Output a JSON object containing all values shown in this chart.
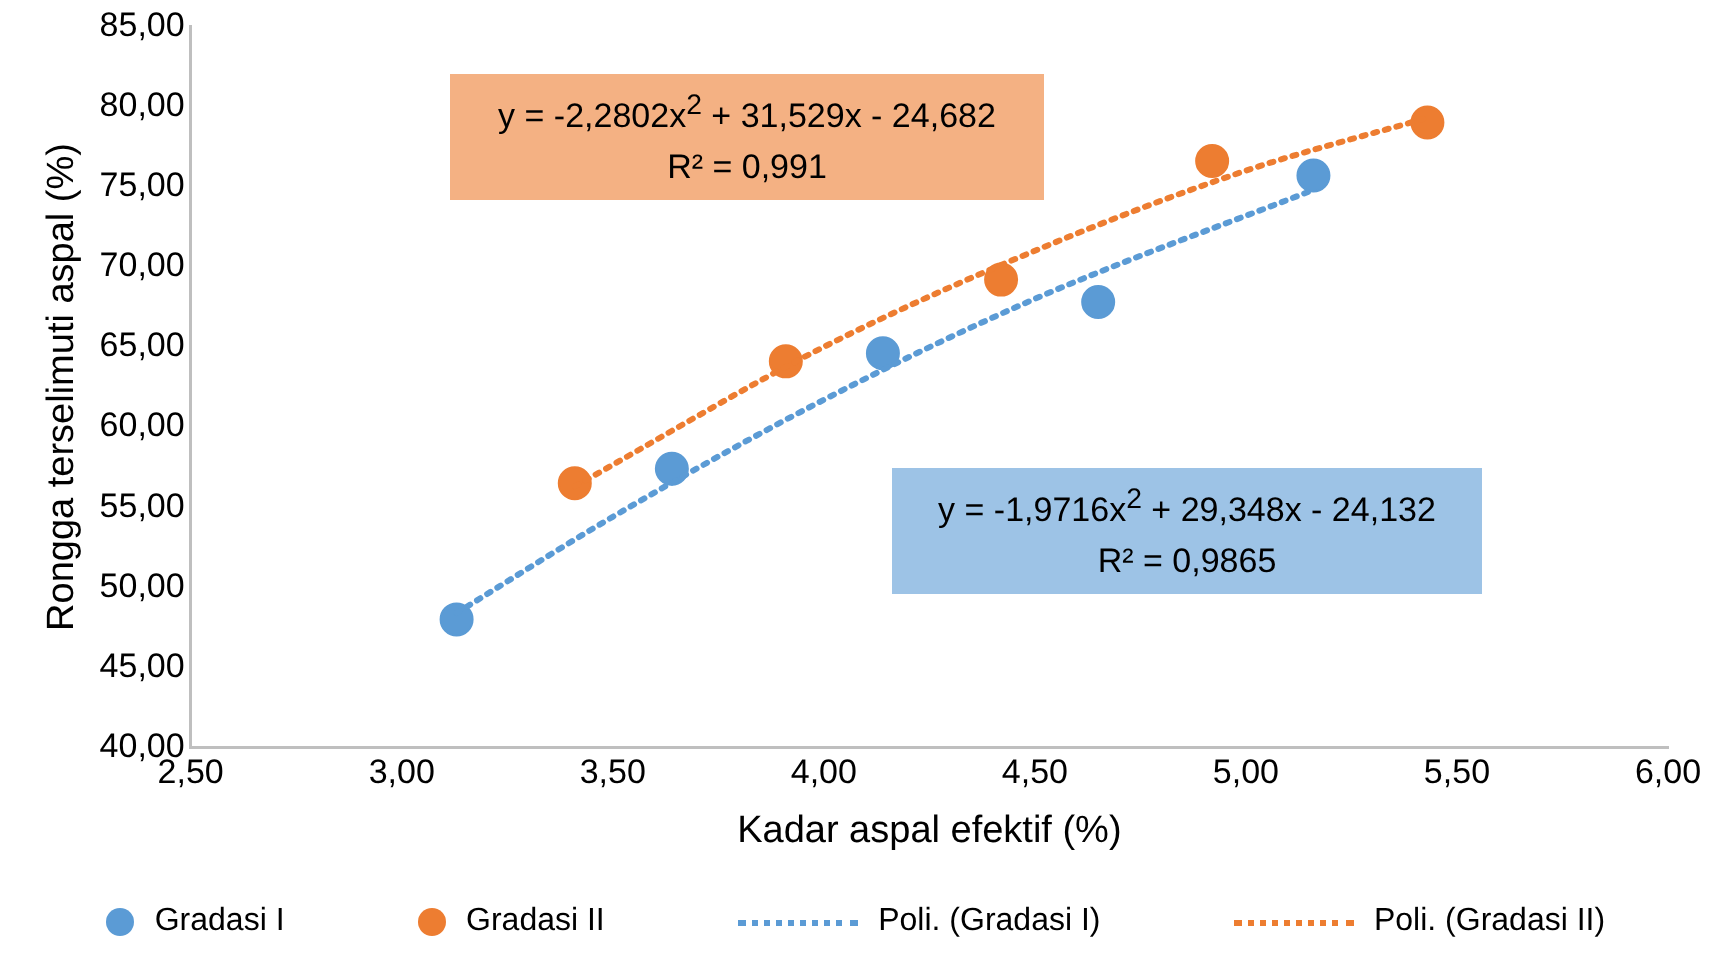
{
  "chart_data": {
    "type": "scatter",
    "xlabel": "Kadar aspal efektif (%)",
    "ylabel": "Rongga terselimuti aspal (%)",
    "xlim": [
      2.5,
      6
    ],
    "ylim": [
      40,
      85
    ],
    "xticks": [
      {
        "value": 2.5,
        "label": "2,50"
      },
      {
        "value": 3,
        "label": "3,00"
      },
      {
        "value": 3.5,
        "label": "3,50"
      },
      {
        "value": 4,
        "label": "4,00"
      },
      {
        "value": 4.5,
        "label": "4,50"
      },
      {
        "value": 5,
        "label": "5,00"
      },
      {
        "value": 5.5,
        "label": "5,50"
      },
      {
        "value": 6,
        "label": "6,00"
      }
    ],
    "yticks": [
      {
        "value": 40,
        "label": "40,00"
      },
      {
        "value": 45,
        "label": "45,00"
      },
      {
        "value": 50,
        "label": "50,00"
      },
      {
        "value": 55,
        "label": "55,00"
      },
      {
        "value": 60,
        "label": "60,00"
      },
      {
        "value": 65,
        "label": "65,00"
      },
      {
        "value": 70,
        "label": "70,00"
      },
      {
        "value": 75,
        "label": "75,00"
      },
      {
        "value": 80,
        "label": "80,00"
      },
      {
        "value": 85,
        "label": "85,00"
      }
    ],
    "grid": false,
    "legend": "bottom",
    "marker": "circle",
    "series": [
      {
        "name": "Gradasi I",
        "color": "#5b9bd5",
        "x": [
          3.13,
          3.64,
          4.14,
          4.65,
          5.16
        ],
        "values": [
          48.0,
          57.4,
          64.6,
          67.8,
          75.7
        ]
      },
      {
        "name": "Gradasi II",
        "color": "#ed7d31",
        "x": [
          3.41,
          3.91,
          4.42,
          4.92,
          5.43
        ],
        "values": [
          56.5,
          64.1,
          69.2,
          76.6,
          79.0
        ]
      },
      {
        "name": "Poli. (Gradasi I)",
        "type": "line",
        "line_style": "dotted",
        "marker": "none",
        "color": "#5b9bd5",
        "x": [
          3.13,
          3.5,
          4.0,
          4.5,
          5.16
        ],
        "values": [
          48.4,
          54.4,
          61.7,
          68.0,
          74.8
        ]
      },
      {
        "name": "Poli. (Gradasi II)",
        "type": "line",
        "line_style": "dotted",
        "marker": "none",
        "color": "#ed7d31",
        "x": [
          3.41,
          4.0,
          4.5,
          5.0,
          5.43
        ],
        "values": [
          56.3,
          65.0,
          71.0,
          76.0,
          79.3
        ]
      }
    ],
    "annotations": [
      "y = -2,2802x$^{2}$ + 31,529x - 24,682\nR² = 0,991",
      "y = -1,9716x$^{2}$ + 29,348x - 24,132\nR² = 0,9865"
    ]
  }
}
